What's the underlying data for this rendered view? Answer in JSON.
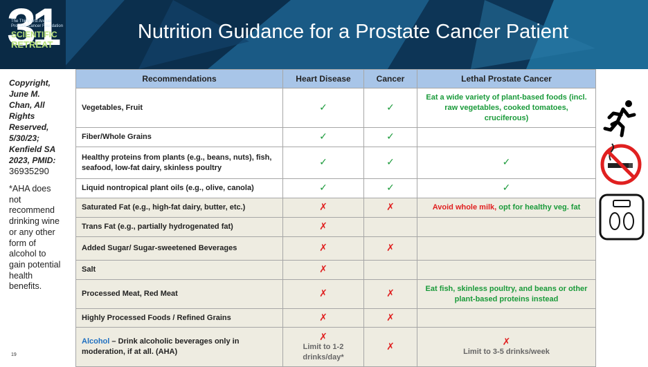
{
  "header": {
    "title": "Nutrition Guidance for a Prostate Cancer Patient",
    "logo": {
      "number": "31",
      "subtitle": "The Thirty-first Annual Prostate Cancer Foundation",
      "line1": "SCIENTIFIC",
      "line2": "RETREAT"
    }
  },
  "sidebar": {
    "copyright": "Copyright, June M. Chan, All Rights Reserved, 5/30/23; Kenfield SA 2023, PMID:",
    "pmid": "36935290",
    "note": "*AHA does not recommend drinking wine or any other form of alcohol to gain potential health benefits.",
    "page": "19"
  },
  "table": {
    "columns": [
      "Recommendations",
      "Heart Disease",
      "Cancer",
      "Lethal Prostate Cancer"
    ],
    "rows": [
      [
        [
          {
            "text": "Vegetables, Fruit",
            "color": "dark"
          }
        ],
        [
          {
            "text": "✓",
            "color": "green"
          }
        ],
        [
          {
            "text": "✓",
            "color": "green"
          }
        ],
        [
          {
            "text": "Eat a wide variety of plant-based foods (incl. raw vegetables, cooked tomatoes, cruciferous)",
            "color": "green"
          }
        ]
      ],
      [
        [
          {
            "text": "Fiber/Whole Grains",
            "color": "dark"
          }
        ],
        [
          {
            "text": "✓",
            "color": "green"
          }
        ],
        [
          {
            "text": "✓",
            "color": "green"
          }
        ],
        []
      ],
      [
        [
          {
            "text": "Healthy proteins from plants (e.g., beans, nuts), fish, seafood, low-fat dairy, skinless poultry",
            "color": "dark"
          }
        ],
        [
          {
            "text": "✓",
            "color": "green"
          }
        ],
        [
          {
            "text": "✓",
            "color": "green"
          }
        ],
        [
          {
            "text": "✓",
            "color": "green"
          }
        ]
      ],
      [
        [
          {
            "text": "Liquid nontropical plant oils (e.g., olive, canola)",
            "color": "dark"
          }
        ],
        [
          {
            "text": "✓",
            "color": "green"
          }
        ],
        [
          {
            "text": "✓",
            "color": "green"
          }
        ],
        [
          {
            "text": "✓",
            "color": "green"
          }
        ]
      ],
      [
        [
          {
            "text": "Saturated Fat (e.g., high-fat dairy, butter, etc.)",
            "color": "dark"
          }
        ],
        [
          {
            "text": "✗",
            "color": "red"
          }
        ],
        [
          {
            "text": "✗",
            "color": "red"
          }
        ],
        [
          {
            "text": "Avoid whole milk, ",
            "color": "red"
          },
          {
            "text": "opt for healthy veg. fat",
            "color": "green"
          }
        ]
      ],
      [
        [
          {
            "text": "Trans Fat (e.g., partially hydrogenated fat)",
            "color": "dark"
          }
        ],
        [
          {
            "text": "✗",
            "color": "red"
          }
        ],
        [],
        []
      ],
      [
        [
          {
            "text": "Added Sugar/ Sugar-sweetened Beverages",
            "color": "dark"
          }
        ],
        [
          {
            "text": "✗",
            "color": "red"
          }
        ],
        [
          {
            "text": "✗",
            "color": "red"
          }
        ],
        []
      ],
      [
        [
          {
            "text": "Salt",
            "color": "dark"
          }
        ],
        [
          {
            "text": "✗",
            "color": "red"
          }
        ],
        [],
        []
      ],
      [
        [
          {
            "text": "Processed Meat, Red Meat",
            "color": "dark"
          }
        ],
        [
          {
            "text": "✗",
            "color": "red"
          }
        ],
        [
          {
            "text": "✗",
            "color": "red"
          }
        ],
        [
          {
            "text": "Eat fish, skinless poultry, and beans or other plant-based proteins instead",
            "color": "green"
          }
        ]
      ],
      [
        [
          {
            "text": "Highly Processed Foods / Refined Grains",
            "color": "dark"
          }
        ],
        [
          {
            "text": "✗",
            "color": "red"
          }
        ],
        [
          {
            "text": "✗",
            "color": "red"
          }
        ],
        []
      ],
      [
        [
          {
            "text": "Alcohol",
            "color": "blue"
          },
          {
            "text": " – Drink alcoholic beverages only in moderation, if at all. (AHA)",
            "color": "dark"
          }
        ],
        [
          {
            "text": "✗",
            "color": "red"
          },
          {
            "text": "Limit to 1-2 drinks/day*",
            "color": "gray"
          }
        ],
        [
          {
            "text": "✗",
            "color": "red"
          }
        ],
        [
          {
            "text": "✗",
            "color": "red"
          },
          {
            "text": "Limit to 3-5 drinks/week",
            "color": "gray"
          }
        ]
      ]
    ]
  }
}
